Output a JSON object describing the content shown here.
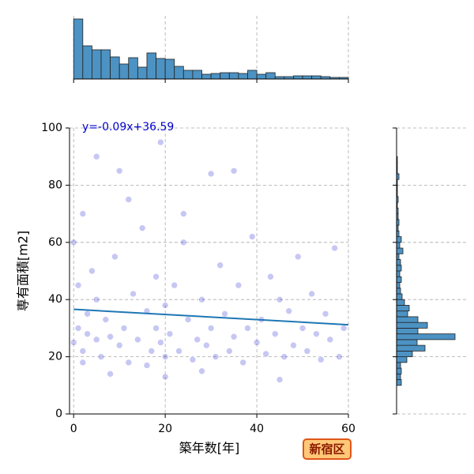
{
  "chart_data": [
    {
      "type": "scatter",
      "x_label": "築年数[年]",
      "y_label": "専有面積[m2]",
      "annotation": "y=-0.09x+36.59",
      "x": [
        0,
        0,
        1,
        1,
        2,
        2,
        3,
        3,
        4,
        5,
        5,
        6,
        7,
        8,
        9,
        10,
        10,
        11,
        12,
        13,
        14,
        15,
        16,
        17,
        18,
        18,
        19,
        19,
        20,
        20,
        21,
        22,
        23,
        24,
        25,
        26,
        27,
        28,
        29,
        30,
        30,
        31,
        32,
        33,
        34,
        35,
        36,
        37,
        38,
        39,
        40,
        41,
        42,
        43,
        44,
        45,
        46,
        47,
        48,
        49,
        50,
        51,
        52,
        53,
        54,
        55,
        56,
        57,
        58,
        59,
        2,
        5,
        8,
        12,
        16,
        20,
        24,
        28,
        35,
        45
      ],
      "y": [
        25,
        60,
        30,
        45,
        22,
        70,
        35,
        28,
        50,
        26,
        40,
        20,
        33,
        27,
        55,
        24,
        85,
        30,
        18,
        42,
        26,
        65,
        36,
        22,
        30,
        48,
        25,
        95,
        20,
        38,
        28,
        45,
        22,
        60,
        33,
        19,
        26,
        40,
        24,
        84,
        30,
        20,
        52,
        35,
        22,
        27,
        45,
        18,
        30,
        62,
        25,
        33,
        21,
        48,
        28,
        40,
        20,
        36,
        24,
        55,
        30,
        22,
        42,
        28,
        19,
        35,
        26,
        58,
        20,
        30,
        18,
        90,
        14,
        75,
        17,
        13,
        70,
        15,
        85,
        12
      ],
      "color": "#0000cd",
      "regression": {
        "slope": -0.09,
        "intercept": 36.59,
        "color": "#1f77b4"
      },
      "xlim": [
        -0.9,
        60
      ],
      "xticks": [
        0,
        20,
        40,
        60
      ],
      "ylim": [
        0,
        100
      ],
      "yticks": [
        0,
        20,
        40,
        60,
        80,
        100
      ],
      "grid": true
    },
    {
      "type": "histogram",
      "orientation": "vertical",
      "color": "#4c92c3",
      "bins": [
        0,
        2,
        4,
        6,
        8,
        10,
        12,
        14,
        16,
        18,
        20,
        22,
        24,
        26,
        28,
        30,
        32,
        34,
        36,
        38,
        40,
        42,
        44,
        46,
        48,
        50,
        52,
        54,
        56,
        58,
        60
      ],
      "values": [
        76,
        42,
        37,
        37,
        28,
        19,
        27,
        15,
        33,
        26,
        25,
        16,
        11,
        11,
        6,
        7,
        8,
        8,
        7,
        11,
        6,
        8,
        3,
        3,
        4,
        4,
        4,
        3,
        2,
        2
      ],
      "xlim": [
        -0.9,
        60
      ],
      "xticks": [
        0,
        20,
        40,
        60
      ],
      "ylim": [
        0,
        80
      ],
      "grid": true
    },
    {
      "type": "histogram",
      "orientation": "horizontal",
      "color": "#4c92c3",
      "bins": [
        10,
        12,
        14,
        16,
        18,
        20,
        22,
        24,
        26,
        28,
        30,
        32,
        34,
        36,
        38,
        40,
        42,
        44,
        46,
        48,
        50,
        52,
        54,
        56,
        58,
        60,
        62,
        64,
        66,
        68,
        70,
        72,
        74,
        76,
        78,
        80,
        82,
        84,
        86,
        88,
        90
      ],
      "values": [
        6,
        5,
        6,
        5,
        13,
        20,
        36,
        26,
        74,
        27,
        39,
        27,
        14,
        16,
        10,
        7,
        5,
        4,
        6,
        4,
        6,
        5,
        3,
        8,
        4,
        6,
        3,
        2,
        3,
        2,
        2,
        1,
        2,
        1,
        1,
        1,
        3,
        1,
        1,
        1
      ],
      "xlim": [
        0,
        88
      ],
      "ylim": [
        0,
        100
      ],
      "yticks": [
        0,
        20,
        40,
        60,
        80,
        100
      ],
      "grid": true
    }
  ],
  "badge": "新宿区"
}
